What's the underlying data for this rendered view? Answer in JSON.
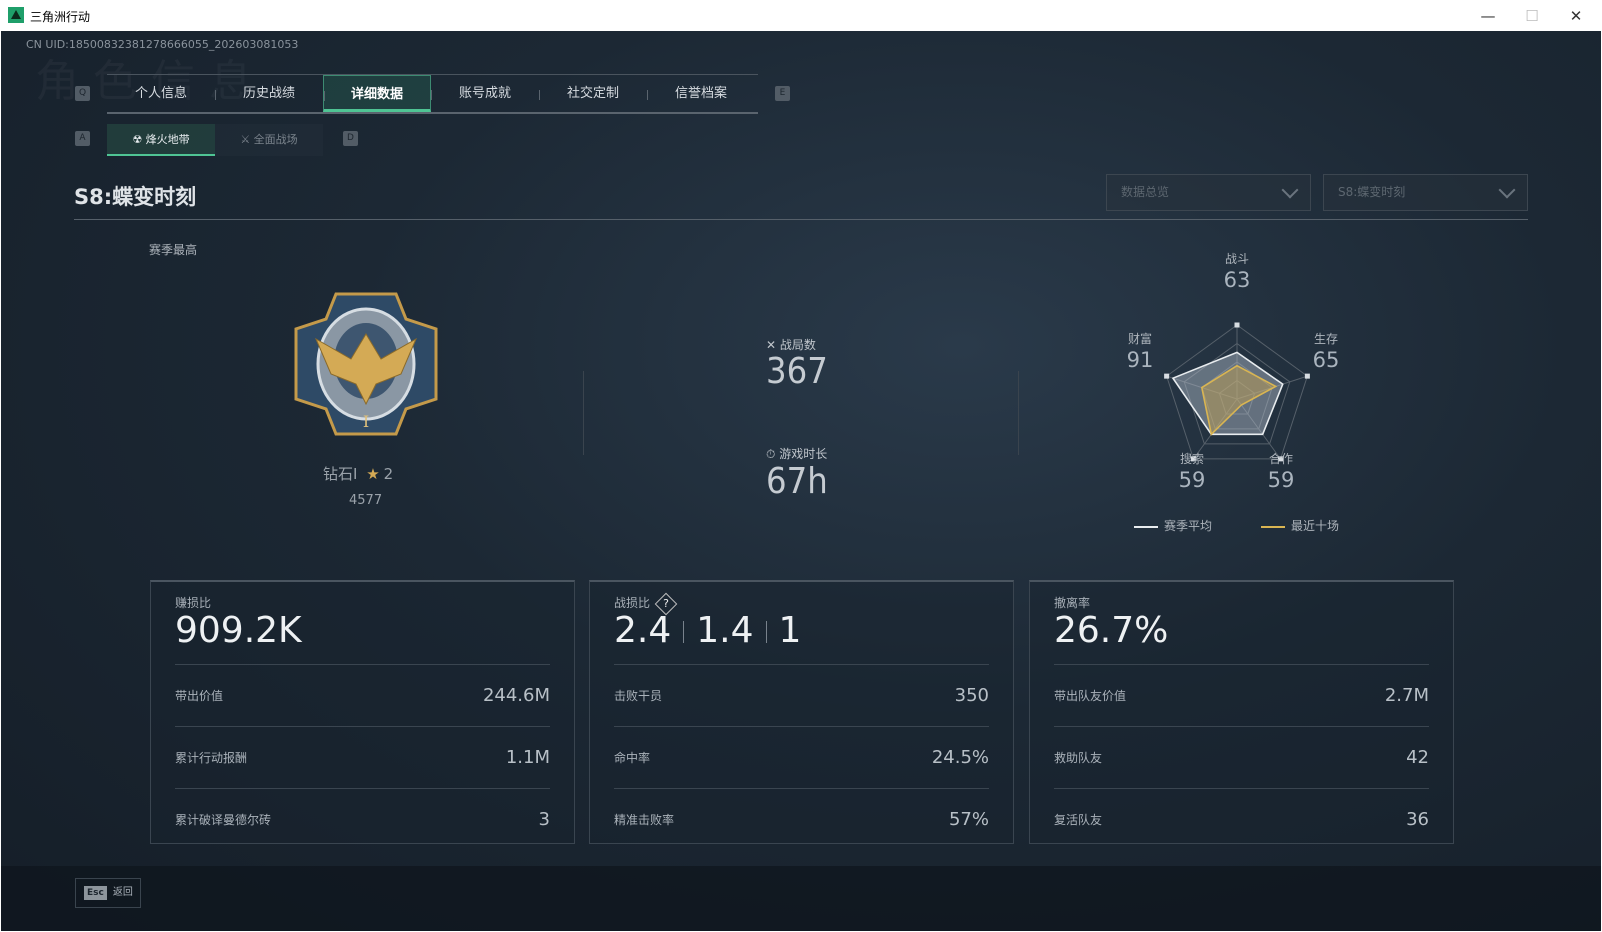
{
  "window": {
    "title": "三角洲行动",
    "minimize": "—",
    "maximize": "☐",
    "close": "✕"
  },
  "uid": "CN UID:18500832381278666055_202603081053",
  "watermark": "角色信息",
  "tabs": {
    "key_prev": "Q",
    "key_next": "E",
    "items": [
      {
        "label": "个人信息"
      },
      {
        "label": "历史战绩"
      },
      {
        "label": "详细数据",
        "active": true
      },
      {
        "label": "账号成就"
      },
      {
        "label": "社交定制"
      },
      {
        "label": "信誉档案"
      }
    ]
  },
  "subtabs": {
    "key_prev": "A",
    "key_next": "D",
    "items": [
      {
        "label": "烽火地带",
        "active": true
      },
      {
        "label": "全面战场"
      }
    ]
  },
  "section": {
    "title": "S8:蝶变时刻"
  },
  "filters": {
    "overview": "数据总览",
    "season": "S8:蝶变时刻"
  },
  "season_best": {
    "label": "赛季最高",
    "rank": "钻石I",
    "stars": "2",
    "score": "4577"
  },
  "summary": {
    "matches_label": "战局数",
    "matches": "367",
    "playtime_label": "游戏时长",
    "playtime": "67h"
  },
  "radar": {
    "axes": [
      {
        "label": "战斗",
        "value": "63"
      },
      {
        "label": "生存",
        "value": "65"
      },
      {
        "label": "合作",
        "value": "59"
      },
      {
        "label": "搜索",
        "value": "59"
      },
      {
        "label": "财富",
        "value": "91"
      }
    ],
    "season_avg": [
      63,
      65,
      59,
      59,
      91
    ],
    "recent_ten": [
      45,
      55,
      10,
      59,
      50
    ],
    "legend": {
      "season_avg": "赛季平均",
      "recent_ten": "最近十场"
    },
    "colors": {
      "season_avg": "#e8ecef",
      "recent_ten": "#d9b552"
    }
  },
  "cards": [
    {
      "title": "赚损比",
      "big": [
        "909.2K"
      ],
      "rows": [
        {
          "label": "带出价值",
          "value": "244.6M"
        },
        {
          "label": "累计行动报酬",
          "value": "1.1M"
        },
        {
          "label": "累计破译曼德尔砖",
          "value": "3"
        }
      ]
    },
    {
      "title": "战损比",
      "help": "?",
      "big": [
        "2.4",
        "1.4",
        "1"
      ],
      "rows": [
        {
          "label": "击败干员",
          "value": "350"
        },
        {
          "label": "命中率",
          "value": "24.5%"
        },
        {
          "label": "精准击败率",
          "value": "57%"
        }
      ]
    },
    {
      "title": "撤离率",
      "big": [
        "26.7%"
      ],
      "rows": [
        {
          "label": "带出队友价值",
          "value": "2.7M"
        },
        {
          "label": "救助队友",
          "value": "42"
        },
        {
          "label": "复活队友",
          "value": "36"
        }
      ]
    }
  ],
  "footer": {
    "key": "Esc",
    "label": "返回"
  },
  "accent": "#4fc494"
}
